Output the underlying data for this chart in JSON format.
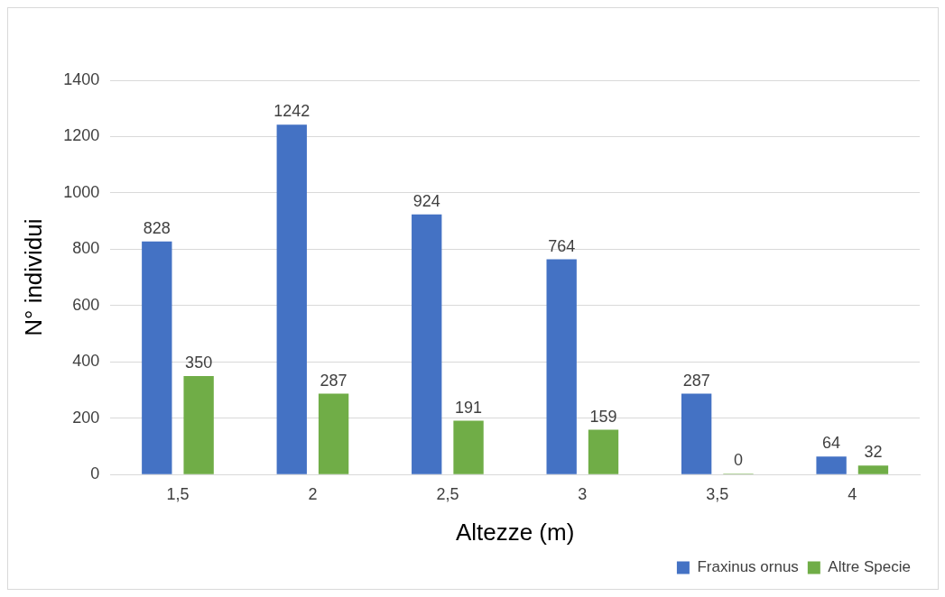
{
  "chart_data": {
    "type": "bar",
    "xlabel": "Altezze (m)",
    "ylabel": "N° individui",
    "categories": [
      "1,5",
      "2",
      "2,5",
      "3",
      "3,5",
      "4"
    ],
    "series": [
      {
        "name": "Fraxinus ornus",
        "color": "#4472c4",
        "values": [
          828,
          1242,
          924,
          764,
          287,
          64
        ]
      },
      {
        "name": "Altre Specie",
        "color": "#70ad47",
        "values": [
          350,
          287,
          191,
          159,
          0,
          32
        ]
      }
    ],
    "ylim": [
      0,
      1400
    ],
    "yticks": [
      0,
      200,
      400,
      600,
      800,
      1000,
      1200,
      1400
    ],
    "grid": "y",
    "legend": "bottom right",
    "data_labels": true
  }
}
